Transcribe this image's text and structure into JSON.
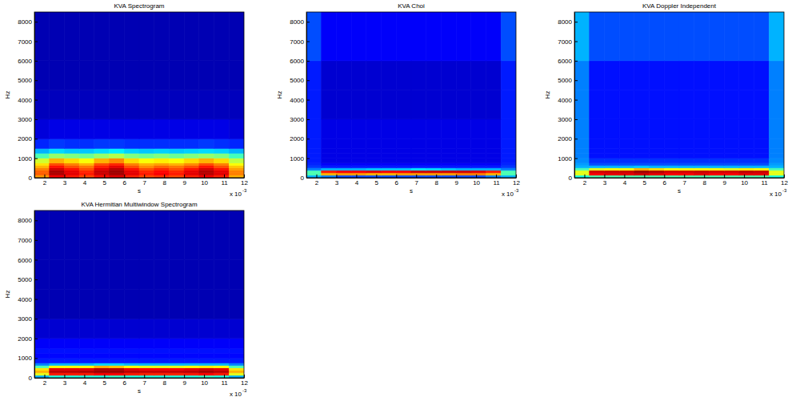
{
  "chart_data": [
    {
      "type": "heatmap",
      "title": "KVA Spectrogram",
      "x_label": "s",
      "y_label": "Hz",
      "x_scale_base": "x 10",
      "x_scale_exponent": -3,
      "xlim": [
        1.5,
        12
      ],
      "ylim": [
        0,
        8500
      ],
      "xticks": [
        2,
        3,
        4,
        5,
        6,
        7,
        8,
        9,
        10,
        11,
        12
      ],
      "yticks": [
        0,
        1000,
        2000,
        3000,
        4000,
        5000,
        6000,
        7000,
        8000
      ],
      "x_edges": [
        1.5,
        2.25,
        3,
        3.75,
        4.5,
        5.25,
        6,
        6.75,
        7.5,
        8.25,
        9,
        9.75,
        10.5,
        11.25,
        12
      ],
      "y_edges": [
        0,
        125,
        250,
        375,
        500,
        625,
        750,
        1000,
        1250,
        1500,
        2000,
        3000,
        4500,
        6000,
        8500
      ],
      "zlim": [
        0,
        1
      ],
      "z": [
        [
          0.72,
          0.88,
          0.85,
          0.8,
          0.86,
          0.9,
          0.84,
          0.8,
          0.82,
          0.8,
          0.84,
          0.88,
          0.84,
          0.7
        ],
        [
          0.78,
          0.95,
          0.9,
          0.85,
          0.92,
          0.96,
          0.9,
          0.85,
          0.88,
          0.85,
          0.9,
          0.94,
          0.9,
          0.75
        ],
        [
          0.78,
          0.96,
          0.9,
          0.84,
          0.93,
          0.97,
          0.9,
          0.84,
          0.87,
          0.84,
          0.9,
          0.95,
          0.9,
          0.75
        ],
        [
          0.75,
          0.92,
          0.86,
          0.8,
          0.9,
          0.95,
          0.86,
          0.8,
          0.84,
          0.8,
          0.86,
          0.92,
          0.86,
          0.72
        ],
        [
          0.7,
          0.86,
          0.8,
          0.76,
          0.85,
          0.9,
          0.8,
          0.74,
          0.78,
          0.76,
          0.8,
          0.86,
          0.8,
          0.68
        ],
        [
          0.65,
          0.8,
          0.75,
          0.7,
          0.8,
          0.84,
          0.75,
          0.7,
          0.72,
          0.7,
          0.74,
          0.8,
          0.75,
          0.62
        ],
        [
          0.58,
          0.7,
          0.66,
          0.62,
          0.7,
          0.74,
          0.66,
          0.62,
          0.64,
          0.62,
          0.66,
          0.7,
          0.66,
          0.56
        ],
        [
          0.45,
          0.52,
          0.5,
          0.48,
          0.52,
          0.55,
          0.5,
          0.48,
          0.5,
          0.48,
          0.5,
          0.52,
          0.5,
          0.44
        ],
        [
          0.3,
          0.34,
          0.32,
          0.32,
          0.34,
          0.36,
          0.33,
          0.32,
          0.33,
          0.32,
          0.33,
          0.34,
          0.33,
          0.3
        ],
        [
          0.16,
          0.18,
          0.17,
          0.17,
          0.18,
          0.18,
          0.17,
          0.17,
          0.17,
          0.17,
          0.17,
          0.18,
          0.17,
          0.16
        ],
        [
          0.09,
          0.1,
          0.1,
          0.1,
          0.1,
          0.1,
          0.1,
          0.1,
          0.1,
          0.1,
          0.1,
          0.1,
          0.1,
          0.09
        ],
        [
          0.06,
          0.06,
          0.06,
          0.06,
          0.06,
          0.06,
          0.06,
          0.06,
          0.06,
          0.06,
          0.06,
          0.06,
          0.06,
          0.06
        ],
        [
          0.05,
          0.05,
          0.05,
          0.05,
          0.05,
          0.05,
          0.05,
          0.05,
          0.05,
          0.05,
          0.05,
          0.05,
          0.05,
          0.05
        ],
        [
          0.05,
          0.05,
          0.05,
          0.05,
          0.05,
          0.05,
          0.05,
          0.05,
          0.05,
          0.05,
          0.05,
          0.05,
          0.05,
          0.05
        ]
      ]
    },
    {
      "type": "heatmap",
      "title": "KVA Choi",
      "x_label": "s",
      "y_label": "Hz",
      "x_scale_base": "x 10",
      "x_scale_exponent": -3,
      "xlim": [
        1.5,
        12
      ],
      "ylim": [
        0,
        8500
      ],
      "xticks": [
        2,
        3,
        4,
        5,
        6,
        7,
        8,
        9,
        10,
        11,
        12
      ],
      "yticks": [
        0,
        1000,
        2000,
        3000,
        4000,
        5000,
        6000,
        7000,
        8000
      ],
      "x_edges": [
        1.5,
        2.25,
        3,
        3.75,
        4.5,
        5.25,
        6,
        6.75,
        7.5,
        8.25,
        9,
        9.75,
        10.5,
        11.25,
        12
      ],
      "y_edges": [
        0,
        125,
        250,
        375,
        500,
        625,
        750,
        1000,
        1250,
        1500,
        2000,
        3000,
        4500,
        6000,
        8500
      ],
      "zlim": [
        0,
        1
      ],
      "z": [
        [
          0.3,
          0.25,
          0.2,
          0.2,
          0.2,
          0.2,
          0.2,
          0.2,
          0.2,
          0.2,
          0.2,
          0.2,
          0.25,
          0.3
        ],
        [
          0.45,
          0.7,
          0.72,
          0.72,
          0.7,
          0.7,
          0.72,
          0.72,
          0.72,
          0.72,
          0.75,
          0.75,
          0.7,
          0.45
        ],
        [
          0.45,
          0.85,
          0.88,
          0.88,
          0.9,
          0.88,
          0.88,
          0.92,
          0.92,
          0.92,
          0.92,
          0.9,
          0.85,
          0.45
        ],
        [
          0.25,
          0.3,
          0.3,
          0.3,
          0.32,
          0.32,
          0.32,
          0.35,
          0.34,
          0.32,
          0.3,
          0.3,
          0.3,
          0.25
        ],
        [
          0.18,
          0.15,
          0.15,
          0.15,
          0.15,
          0.15,
          0.15,
          0.15,
          0.15,
          0.15,
          0.15,
          0.15,
          0.15,
          0.18
        ],
        [
          0.16,
          0.12,
          0.12,
          0.12,
          0.12,
          0.12,
          0.12,
          0.12,
          0.12,
          0.12,
          0.12,
          0.12,
          0.12,
          0.16
        ],
        [
          0.15,
          0.1,
          0.1,
          0.1,
          0.1,
          0.1,
          0.1,
          0.1,
          0.1,
          0.1,
          0.1,
          0.1,
          0.1,
          0.15
        ],
        [
          0.15,
          0.1,
          0.1,
          0.1,
          0.1,
          0.1,
          0.1,
          0.1,
          0.1,
          0.1,
          0.1,
          0.1,
          0.1,
          0.15
        ],
        [
          0.15,
          0.1,
          0.1,
          0.1,
          0.1,
          0.1,
          0.1,
          0.1,
          0.1,
          0.1,
          0.1,
          0.1,
          0.1,
          0.15
        ],
        [
          0.15,
          0.1,
          0.1,
          0.1,
          0.1,
          0.1,
          0.1,
          0.1,
          0.1,
          0.1,
          0.1,
          0.1,
          0.1,
          0.15
        ],
        [
          0.15,
          0.1,
          0.1,
          0.1,
          0.1,
          0.1,
          0.1,
          0.1,
          0.1,
          0.1,
          0.1,
          0.1,
          0.1,
          0.15
        ],
        [
          0.15,
          0.08,
          0.08,
          0.08,
          0.08,
          0.08,
          0.08,
          0.08,
          0.08,
          0.08,
          0.08,
          0.08,
          0.08,
          0.15
        ],
        [
          0.15,
          0.08,
          0.08,
          0.08,
          0.08,
          0.08,
          0.08,
          0.08,
          0.08,
          0.08,
          0.08,
          0.08,
          0.08,
          0.15
        ],
        [
          0.2,
          0.12,
          0.12,
          0.12,
          0.12,
          0.12,
          0.12,
          0.12,
          0.12,
          0.12,
          0.12,
          0.12,
          0.12,
          0.2
        ]
      ]
    },
    {
      "type": "heatmap",
      "title": "KVA Doppler Independent",
      "x_label": "s",
      "y_label": "Hz",
      "x_scale_base": "x 10",
      "x_scale_exponent": -3,
      "xlim": [
        1.5,
        12
      ],
      "ylim": [
        0,
        8500
      ],
      "xticks": [
        2,
        3,
        4,
        5,
        6,
        7,
        8,
        9,
        10,
        11,
        12
      ],
      "yticks": [
        0,
        1000,
        2000,
        3000,
        4000,
        5000,
        6000,
        7000,
        8000
      ],
      "x_edges": [
        1.5,
        2.25,
        3,
        3.75,
        4.5,
        5.25,
        6,
        6.75,
        7.5,
        8.25,
        9,
        9.75,
        10.5,
        11.25,
        12
      ],
      "y_edges": [
        0,
        125,
        250,
        375,
        500,
        625,
        750,
        1000,
        1250,
        1500,
        2000,
        3000,
        4500,
        6000,
        8500
      ],
      "zlim": [
        0,
        1
      ],
      "z": [
        [
          0.4,
          0.45,
          0.45,
          0.45,
          0.45,
          0.45,
          0.45,
          0.45,
          0.45,
          0.45,
          0.45,
          0.45,
          0.45,
          0.4
        ],
        [
          0.6,
          0.88,
          0.9,
          0.9,
          0.92,
          0.9,
          0.88,
          0.88,
          0.9,
          0.88,
          0.88,
          0.9,
          0.9,
          0.6
        ],
        [
          0.6,
          0.92,
          0.93,
          0.93,
          0.97,
          0.95,
          0.92,
          0.92,
          0.93,
          0.92,
          0.92,
          0.94,
          0.93,
          0.6
        ],
        [
          0.45,
          0.6,
          0.62,
          0.62,
          0.7,
          0.66,
          0.62,
          0.62,
          0.62,
          0.62,
          0.6,
          0.64,
          0.62,
          0.45
        ],
        [
          0.3,
          0.3,
          0.3,
          0.3,
          0.32,
          0.3,
          0.3,
          0.3,
          0.3,
          0.3,
          0.3,
          0.3,
          0.3,
          0.3
        ],
        [
          0.28,
          0.2,
          0.2,
          0.2,
          0.2,
          0.2,
          0.2,
          0.2,
          0.2,
          0.2,
          0.2,
          0.2,
          0.2,
          0.28
        ],
        [
          0.26,
          0.17,
          0.17,
          0.17,
          0.17,
          0.17,
          0.17,
          0.17,
          0.17,
          0.17,
          0.17,
          0.17,
          0.17,
          0.26
        ],
        [
          0.25,
          0.14,
          0.14,
          0.14,
          0.14,
          0.14,
          0.14,
          0.14,
          0.14,
          0.14,
          0.14,
          0.14,
          0.14,
          0.25
        ],
        [
          0.25,
          0.14,
          0.14,
          0.14,
          0.14,
          0.14,
          0.14,
          0.14,
          0.14,
          0.14,
          0.14,
          0.14,
          0.14,
          0.25
        ],
        [
          0.25,
          0.14,
          0.14,
          0.14,
          0.14,
          0.14,
          0.14,
          0.14,
          0.14,
          0.14,
          0.14,
          0.14,
          0.14,
          0.25
        ],
        [
          0.25,
          0.14,
          0.14,
          0.14,
          0.14,
          0.14,
          0.14,
          0.14,
          0.14,
          0.14,
          0.14,
          0.14,
          0.14,
          0.25
        ],
        [
          0.25,
          0.14,
          0.14,
          0.14,
          0.14,
          0.14,
          0.14,
          0.14,
          0.14,
          0.14,
          0.14,
          0.14,
          0.14,
          0.25
        ],
        [
          0.25,
          0.14,
          0.14,
          0.14,
          0.14,
          0.14,
          0.14,
          0.14,
          0.14,
          0.14,
          0.14,
          0.14,
          0.14,
          0.25
        ],
        [
          0.3,
          0.2,
          0.2,
          0.2,
          0.2,
          0.2,
          0.2,
          0.2,
          0.2,
          0.2,
          0.2,
          0.2,
          0.2,
          0.3
        ]
      ]
    },
    {
      "type": "heatmap",
      "title": "KVA Hermitian Multiwindow Spectrogram",
      "x_label": "s",
      "y_label": "Hz",
      "x_scale_base": "x 10",
      "x_scale_exponent": -3,
      "xlim": [
        1.5,
        12
      ],
      "ylim": [
        0,
        8500
      ],
      "xticks": [
        2,
        3,
        4,
        5,
        6,
        7,
        8,
        9,
        10,
        11,
        12
      ],
      "yticks": [
        0,
        1000,
        2000,
        3000,
        4000,
        5000,
        6000,
        7000,
        8000
      ],
      "x_edges": [
        1.5,
        2.25,
        3,
        3.75,
        4.5,
        5.25,
        6,
        6.75,
        7.5,
        8.25,
        9,
        9.75,
        10.5,
        11.25,
        12
      ],
      "y_edges": [
        0,
        125,
        250,
        375,
        500,
        625,
        750,
        1000,
        1250,
        1500,
        2000,
        3000,
        4500,
        6000,
        8500
      ],
      "zlim": [
        0,
        1
      ],
      "z": [
        [
          0.3,
          0.4,
          0.4,
          0.4,
          0.4,
          0.42,
          0.4,
          0.4,
          0.4,
          0.4,
          0.4,
          0.42,
          0.4,
          0.3
        ],
        [
          0.6,
          0.85,
          0.85,
          0.85,
          0.88,
          0.88,
          0.85,
          0.84,
          0.84,
          0.84,
          0.85,
          0.87,
          0.85,
          0.6
        ],
        [
          0.7,
          0.94,
          0.94,
          0.95,
          0.97,
          0.97,
          0.94,
          0.93,
          0.93,
          0.93,
          0.94,
          0.96,
          0.94,
          0.7
        ],
        [
          0.65,
          0.9,
          0.9,
          0.9,
          0.95,
          0.95,
          0.9,
          0.88,
          0.88,
          0.88,
          0.9,
          0.92,
          0.9,
          0.65
        ],
        [
          0.45,
          0.62,
          0.62,
          0.62,
          0.7,
          0.68,
          0.62,
          0.6,
          0.6,
          0.6,
          0.62,
          0.64,
          0.62,
          0.45
        ],
        [
          0.25,
          0.3,
          0.3,
          0.3,
          0.33,
          0.33,
          0.3,
          0.3,
          0.3,
          0.3,
          0.3,
          0.3,
          0.3,
          0.25
        ],
        [
          0.15,
          0.15,
          0.15,
          0.15,
          0.15,
          0.15,
          0.15,
          0.15,
          0.15,
          0.15,
          0.15,
          0.15,
          0.15,
          0.15
        ],
        [
          0.13,
          0.13,
          0.13,
          0.13,
          0.13,
          0.13,
          0.13,
          0.13,
          0.13,
          0.13,
          0.13,
          0.13,
          0.13,
          0.13
        ],
        [
          0.14,
          0.14,
          0.14,
          0.14,
          0.14,
          0.14,
          0.14,
          0.14,
          0.14,
          0.14,
          0.14,
          0.14,
          0.14,
          0.14
        ],
        [
          0.12,
          0.12,
          0.12,
          0.12,
          0.12,
          0.12,
          0.12,
          0.12,
          0.12,
          0.12,
          0.12,
          0.12,
          0.12,
          0.12
        ],
        [
          0.08,
          0.08,
          0.08,
          0.08,
          0.08,
          0.08,
          0.08,
          0.08,
          0.08,
          0.08,
          0.08,
          0.08,
          0.08,
          0.08
        ],
        [
          0.05,
          0.05,
          0.05,
          0.05,
          0.05,
          0.05,
          0.05,
          0.05,
          0.05,
          0.05,
          0.05,
          0.05,
          0.05,
          0.05
        ],
        [
          0.05,
          0.05,
          0.05,
          0.05,
          0.05,
          0.05,
          0.05,
          0.05,
          0.05,
          0.05,
          0.05,
          0.05,
          0.05,
          0.05
        ],
        [
          0.05,
          0.05,
          0.05,
          0.05,
          0.05,
          0.05,
          0.05,
          0.05,
          0.05,
          0.05,
          0.05,
          0.05,
          0.05,
          0.05
        ]
      ]
    }
  ]
}
